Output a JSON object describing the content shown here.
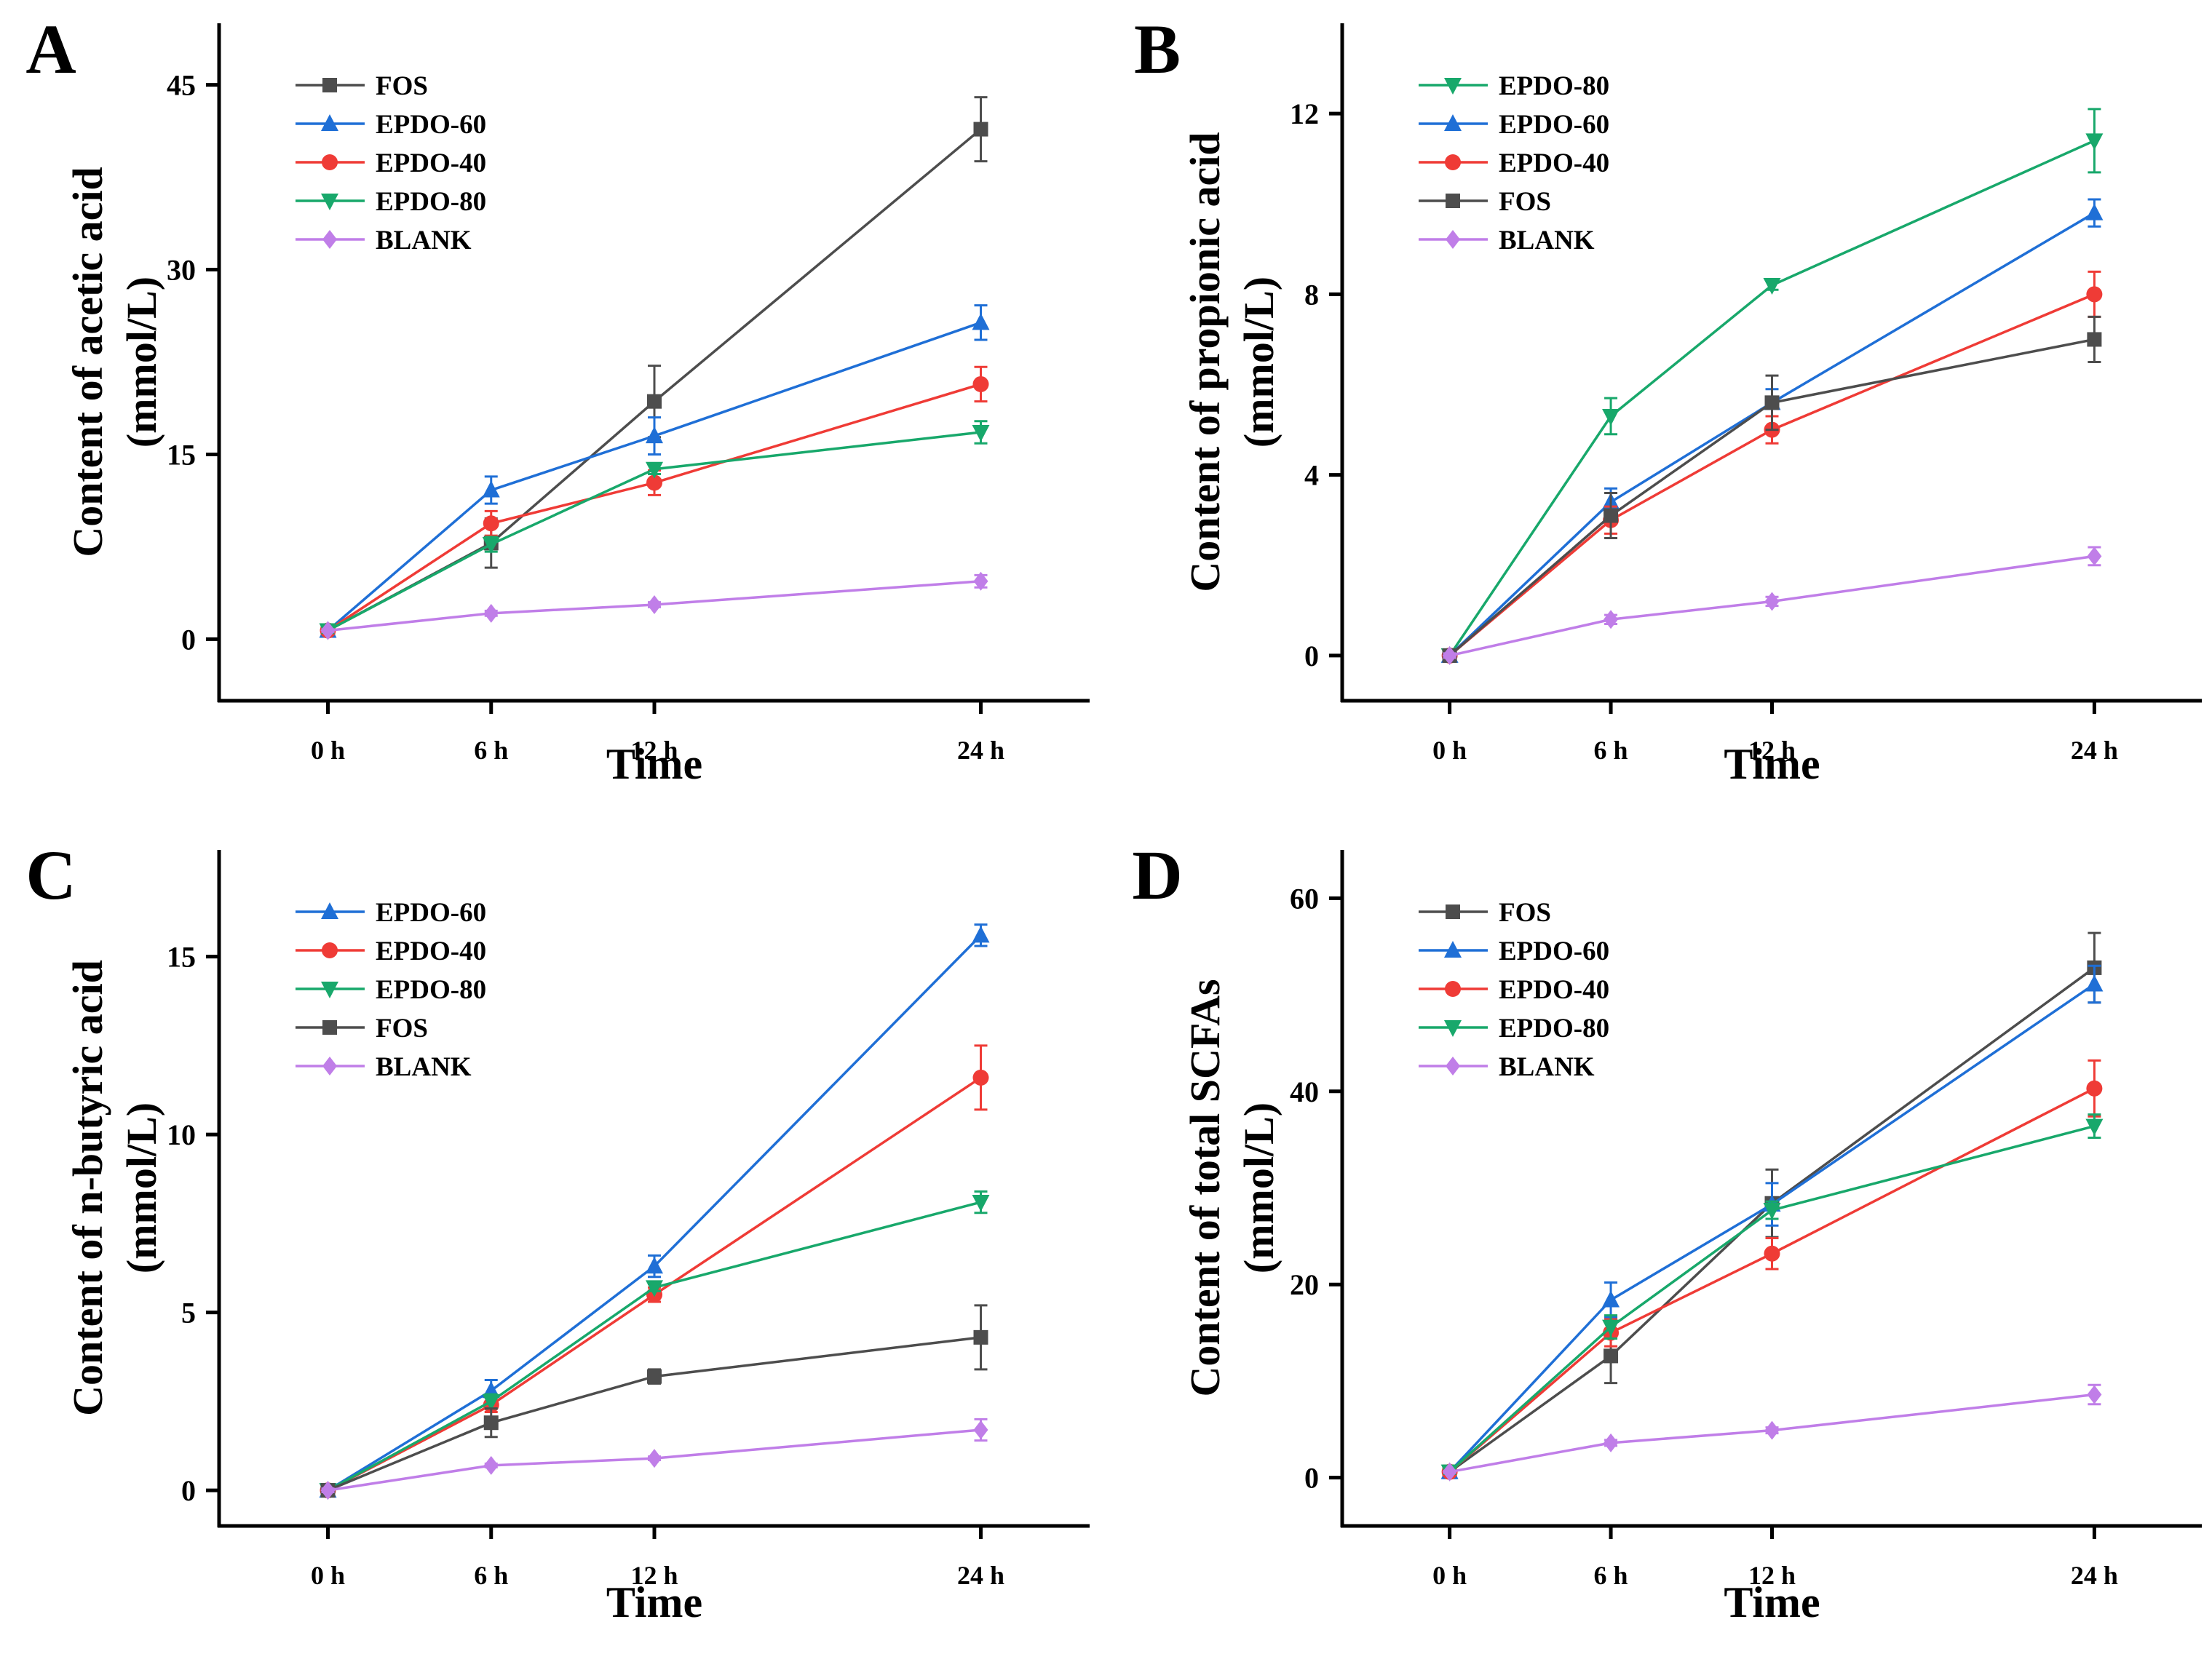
{
  "figure": {
    "x_axis_title": "Time"
  },
  "series_styles": {
    "FOS": {
      "color": "#4d4d4d",
      "marker": "square"
    },
    "EPDO-60": {
      "color": "#1f6fd6",
      "marker": "triangle-up"
    },
    "EPDO-40": {
      "color": "#ef3b36",
      "marker": "circle"
    },
    "EPDO-80": {
      "color": "#18a86b",
      "marker": "triangle-down"
    },
    "BLANK": {
      "color": "#c07ee8",
      "marker": "diamond"
    }
  },
  "chart_data": [
    {
      "panel": "A",
      "type": "line",
      "title": "",
      "xlabel": "Time",
      "ylabel": [
        "Content of acetic acid",
        "(mmol/L)"
      ],
      "x": [
        0,
        6,
        12,
        24
      ],
      "x_tick_labels": [
        "0 h",
        "6 h",
        "12 h",
        "24 h"
      ],
      "xlim": [
        -4,
        28
      ],
      "ylim": [
        -5,
        50
      ],
      "y_ticks": [
        0,
        15,
        30,
        45
      ],
      "y_tick_labels": [
        "0",
        "15",
        "30",
        "45"
      ],
      "legend_position": "top-left",
      "series": [
        {
          "name": "FOS",
          "values": [
            0.7,
            7.8,
            19.3,
            41.4
          ],
          "errors": [
            0.2,
            2.0,
            2.9,
            2.6
          ]
        },
        {
          "name": "EPDO-60",
          "values": [
            0.7,
            12.1,
            16.5,
            25.7
          ],
          "errors": [
            0.2,
            1.1,
            1.5,
            1.4
          ]
        },
        {
          "name": "EPDO-40",
          "values": [
            0.7,
            9.4,
            12.7,
            20.7
          ],
          "errors": [
            0.2,
            1.0,
            1.0,
            1.4
          ]
        },
        {
          "name": "EPDO-80",
          "values": [
            0.7,
            7.7,
            13.8,
            16.8
          ],
          "errors": [
            0.2,
            0.6,
            0.4,
            0.9
          ]
        },
        {
          "name": "BLANK",
          "values": [
            0.7,
            2.1,
            2.8,
            4.7
          ],
          "errors": [
            0.1,
            0.2,
            0.2,
            0.5
          ]
        }
      ]
    },
    {
      "panel": "B",
      "type": "line",
      "title": "",
      "xlabel": "Time",
      "ylabel": [
        "Content of propionic acid",
        "(mmol/L)"
      ],
      "x": [
        0,
        6,
        12,
        24
      ],
      "x_tick_labels": [
        "0 h",
        "6 h",
        "12 h",
        "24 h"
      ],
      "xlim": [
        -4,
        28
      ],
      "ylim": [
        -1,
        14
      ],
      "y_ticks": [
        0,
        4,
        8,
        12
      ],
      "y_tick_labels": [
        "0",
        "4",
        "8",
        "12"
      ],
      "legend_position": "top-left",
      "series": [
        {
          "name": "EPDO-80",
          "values": [
            0.0,
            5.3,
            8.2,
            11.4
          ],
          "errors": [
            0.05,
            0.4,
            0.1,
            0.7
          ]
        },
        {
          "name": "EPDO-60",
          "values": [
            0.0,
            3.4,
            5.6,
            9.8
          ],
          "errors": [
            0.05,
            0.3,
            0.3,
            0.3
          ]
        },
        {
          "name": "EPDO-40",
          "values": [
            0.0,
            3.0,
            5.0,
            8.0
          ],
          "errors": [
            0.05,
            0.3,
            0.3,
            0.5
          ]
        },
        {
          "name": "FOS",
          "values": [
            0.0,
            3.1,
            5.6,
            7.0
          ],
          "errors": [
            0.05,
            0.5,
            0.6,
            0.5
          ]
        },
        {
          "name": "BLANK",
          "values": [
            0.0,
            0.8,
            1.2,
            2.2
          ],
          "errors": [
            0.05,
            0.1,
            0.1,
            0.2
          ]
        }
      ]
    },
    {
      "panel": "C",
      "type": "line",
      "title": "",
      "xlabel": "Time",
      "ylabel": [
        "Content of n-butyric acid",
        "(mmol/L)"
      ],
      "x": [
        0,
        6,
        12,
        24
      ],
      "x_tick_labels": [
        "0 h",
        "6 h",
        "12 h",
        "24 h"
      ],
      "xlim": [
        -4,
        28
      ],
      "ylim": [
        -1,
        18
      ],
      "y_ticks": [
        0,
        5,
        10,
        15
      ],
      "y_tick_labels": [
        "0",
        "5",
        "10",
        "15"
      ],
      "legend_position": "top-left",
      "series": [
        {
          "name": "EPDO-60",
          "values": [
            0.0,
            2.8,
            6.3,
            15.6
          ],
          "errors": [
            0.05,
            0.3,
            0.3,
            0.3
          ]
        },
        {
          "name": "EPDO-40",
          "values": [
            0.0,
            2.4,
            5.5,
            11.6
          ],
          "errors": [
            0.05,
            0.2,
            0.2,
            0.9
          ]
        },
        {
          "name": "EPDO-80",
          "values": [
            0.0,
            2.5,
            5.7,
            8.1
          ],
          "errors": [
            0.05,
            0.2,
            0.1,
            0.3
          ]
        },
        {
          "name": "FOS",
          "values": [
            0.0,
            1.9,
            3.2,
            4.3
          ],
          "errors": [
            0.05,
            0.4,
            0.2,
            0.9
          ]
        },
        {
          "name": "BLANK",
          "values": [
            0.0,
            0.7,
            0.9,
            1.7
          ],
          "errors": [
            0.05,
            0.05,
            0.05,
            0.3
          ]
        }
      ]
    },
    {
      "panel": "D",
      "type": "line",
      "title": "",
      "xlabel": "Time",
      "ylabel": [
        "Content of total SCFAs",
        "(mmol/L)"
      ],
      "x": [
        0,
        6,
        12,
        24
      ],
      "x_tick_labels": [
        "0 h",
        "6 h",
        "12 h",
        "24 h"
      ],
      "xlim": [
        -4,
        28
      ],
      "ylim": [
        -5,
        65
      ],
      "y_ticks": [
        0,
        20,
        40,
        60
      ],
      "y_tick_labels": [
        "0",
        "20",
        "40",
        "60"
      ],
      "legend_position": "top-left",
      "series": [
        {
          "name": "FOS",
          "values": [
            0.6,
            12.6,
            28.4,
            52.8
          ],
          "errors": [
            0.2,
            2.8,
            3.5,
            3.6
          ]
        },
        {
          "name": "EPDO-60",
          "values": [
            0.6,
            18.4,
            28.3,
            51.1
          ],
          "errors": [
            0.2,
            1.8,
            2.2,
            1.9
          ]
        },
        {
          "name": "EPDO-40",
          "values": [
            0.6,
            15.0,
            23.2,
            40.3
          ],
          "errors": [
            0.2,
            1.4,
            1.6,
            2.9
          ]
        },
        {
          "name": "EPDO-80",
          "values": [
            0.6,
            15.6,
            27.7,
            36.4
          ],
          "errors": [
            0.2,
            1.2,
            0.9,
            1.2
          ]
        },
        {
          "name": "BLANK",
          "values": [
            0.6,
            3.6,
            4.9,
            8.6
          ],
          "errors": [
            0.1,
            0.3,
            0.3,
            1.0
          ]
        }
      ]
    }
  ]
}
